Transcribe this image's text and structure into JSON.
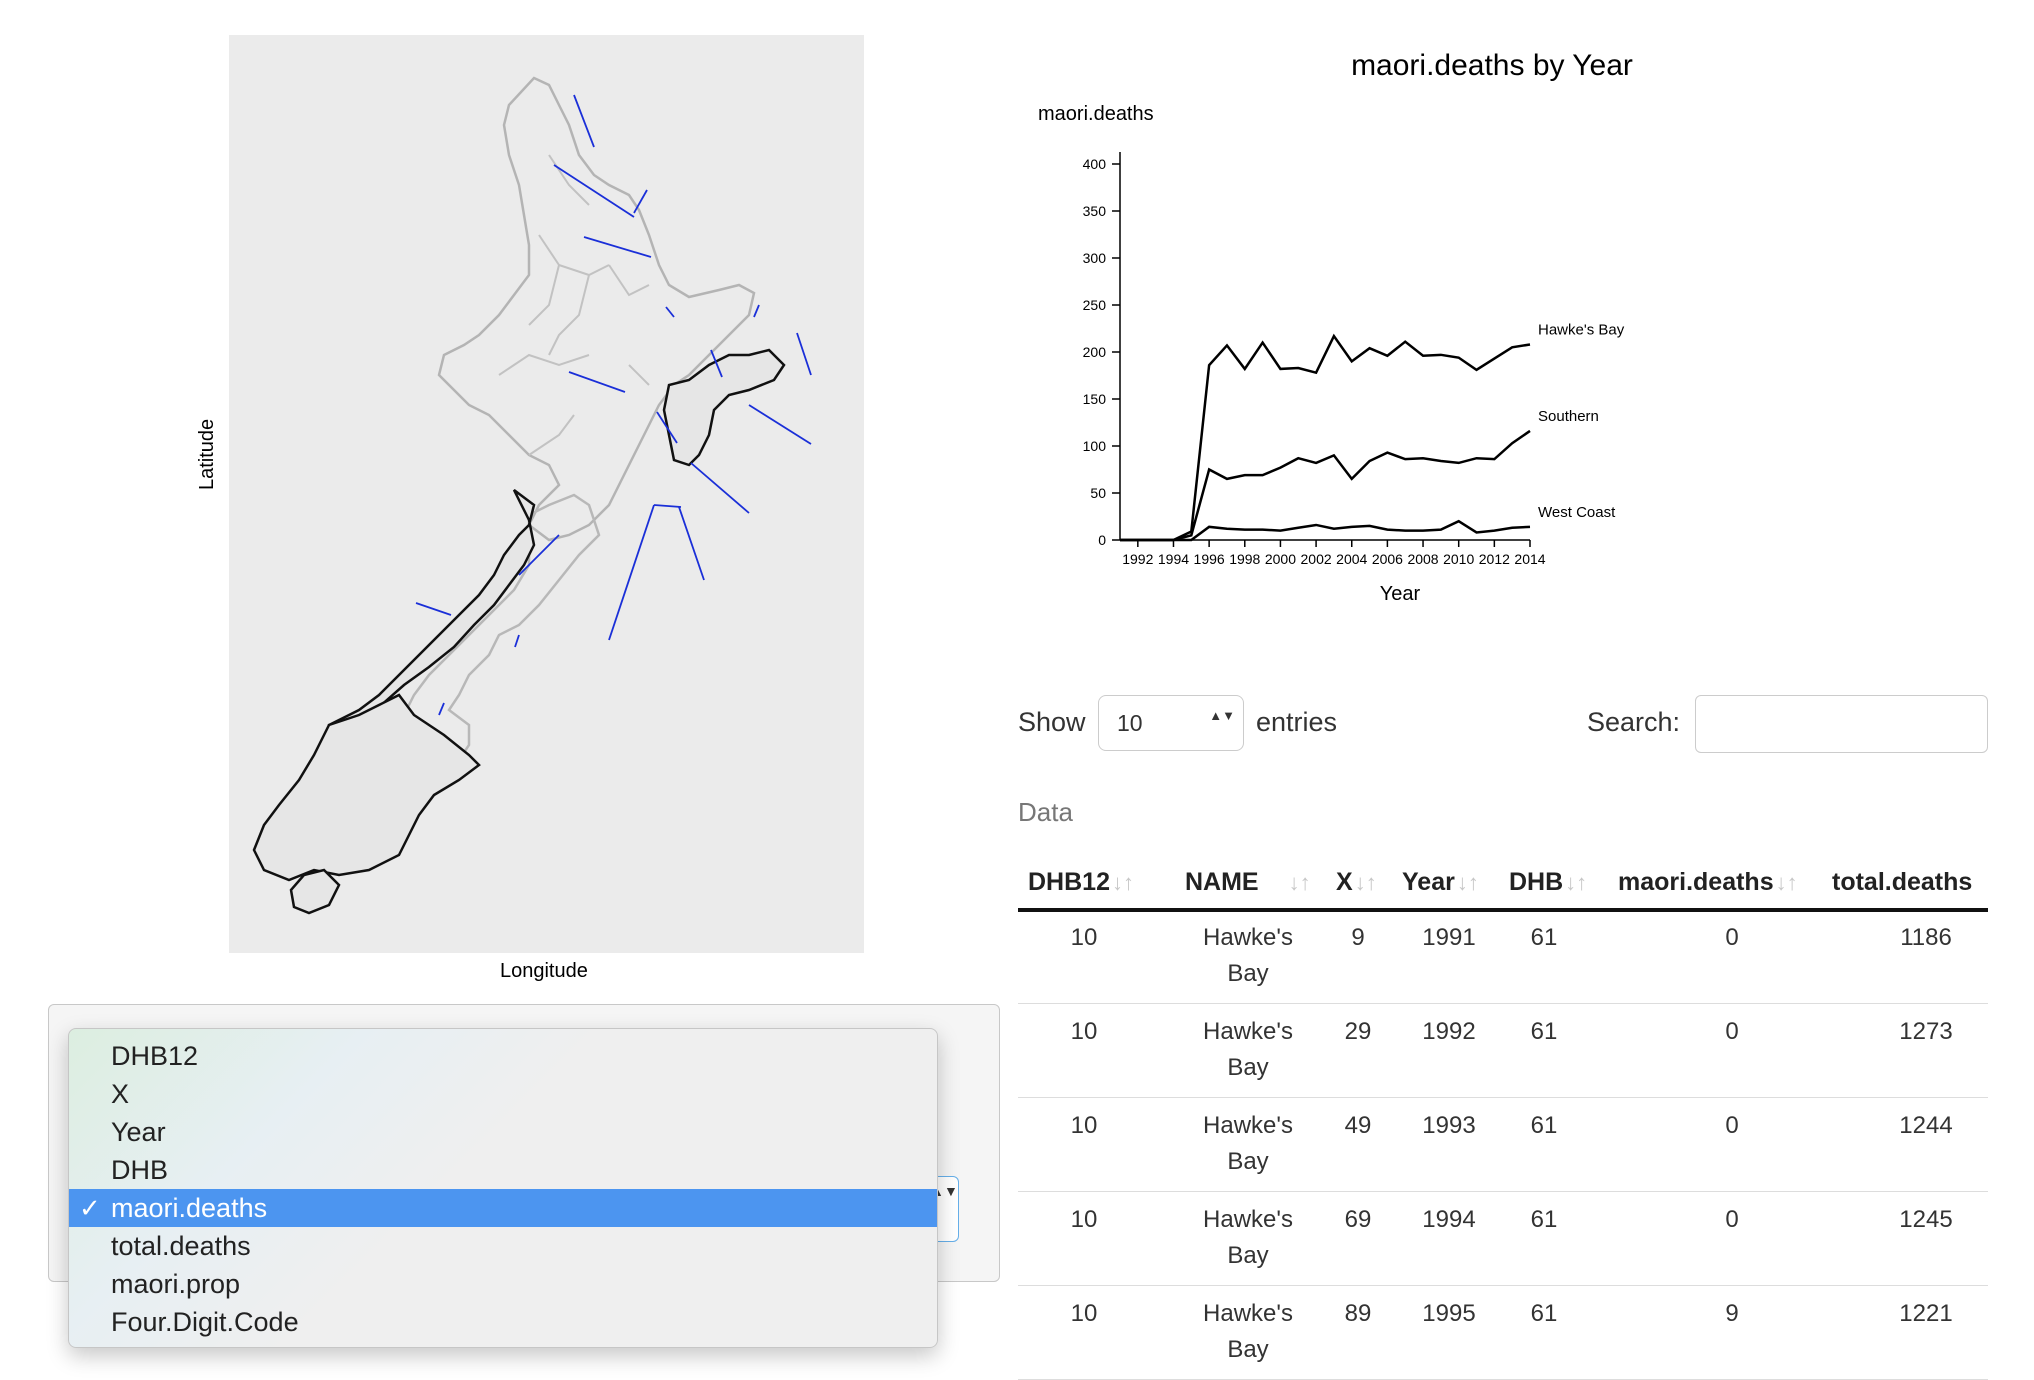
{
  "map": {
    "y_axis_label": "Latitude",
    "x_axis_label": "Longitude"
  },
  "variable_select": {
    "options": [
      "DHB12",
      "X",
      "Year",
      "DHB",
      "maori.deaths",
      "total.deaths",
      "maori.prop",
      "Four.Digit.Code"
    ],
    "selected": "maori.deaths",
    "check_glyph": "✓",
    "arrow_glyph": "▲▼"
  },
  "chart_data": {
    "type": "line",
    "title": "maori.deaths by Year",
    "xlabel": "Year",
    "ylabel": "maori.deaths",
    "xlim": [
      1991,
      2014
    ],
    "ylim": [
      0,
      400
    ],
    "x_ticks": [
      1992,
      1994,
      1996,
      1998,
      2000,
      2002,
      2004,
      2006,
      2008,
      2010,
      2012,
      2014
    ],
    "y_ticks": [
      0,
      50,
      100,
      150,
      200,
      250,
      300,
      350,
      400
    ],
    "x": [
      1991,
      1992,
      1993,
      1994,
      1995,
      1996,
      1997,
      1998,
      1999,
      2000,
      2001,
      2002,
      2003,
      2004,
      2005,
      2006,
      2007,
      2008,
      2009,
      2010,
      2011,
      2012,
      2013,
      2014
    ],
    "series": [
      {
        "name": "Hawke's Bay",
        "values": [
          0,
          0,
          0,
          0,
          9,
          186,
          207,
          182,
          210,
          182,
          183,
          178,
          217,
          190,
          204,
          196,
          211,
          196,
          197,
          194,
          181,
          193,
          205,
          208
        ]
      },
      {
        "name": "Southern",
        "values": [
          0,
          0,
          0,
          0,
          5,
          75,
          65,
          69,
          69,
          77,
          87,
          82,
          90,
          65,
          84,
          93,
          86,
          87,
          84,
          82,
          87,
          86,
          103,
          116
        ]
      },
      {
        "name": "West Coast",
        "values": [
          0,
          0,
          0,
          0,
          0,
          14,
          12,
          11,
          11,
          10,
          13,
          16,
          12,
          14,
          15,
          11,
          10,
          10,
          11,
          20,
          8,
          10,
          13,
          14
        ]
      }
    ]
  },
  "table_controls": {
    "show_label": "Show",
    "length_value": "10",
    "length_arrows": "▲▼",
    "entries_label": "entries",
    "search_label": "Search:",
    "search_value": "",
    "caption": "Data"
  },
  "table": {
    "sort_glyph": "↓↑",
    "columns": [
      "DHB12",
      "NAME",
      "X",
      "Year",
      "DHB",
      "maori.deaths",
      "total.deaths"
    ],
    "rows": [
      {
        "dhb12": "10",
        "name_1": "Hawke's",
        "name_2": "Bay",
        "x": "9",
        "year": "1991",
        "dhb": "61",
        "maori_deaths": "0",
        "total_deaths": "1186"
      },
      {
        "dhb12": "10",
        "name_1": "Hawke's",
        "name_2": "Bay",
        "x": "29",
        "year": "1992",
        "dhb": "61",
        "maori_deaths": "0",
        "total_deaths": "1273"
      },
      {
        "dhb12": "10",
        "name_1": "Hawke's",
        "name_2": "Bay",
        "x": "49",
        "year": "1993",
        "dhb": "61",
        "maori_deaths": "0",
        "total_deaths": "1244"
      },
      {
        "dhb12": "10",
        "name_1": "Hawke's",
        "name_2": "Bay",
        "x": "69",
        "year": "1994",
        "dhb": "61",
        "maori_deaths": "0",
        "total_deaths": "1245"
      },
      {
        "dhb12": "10",
        "name_1": "Hawke's",
        "name_2": "Bay",
        "x": "89",
        "year": "1995",
        "dhb": "61",
        "maori_deaths": "9",
        "total_deaths": "1221"
      }
    ]
  }
}
